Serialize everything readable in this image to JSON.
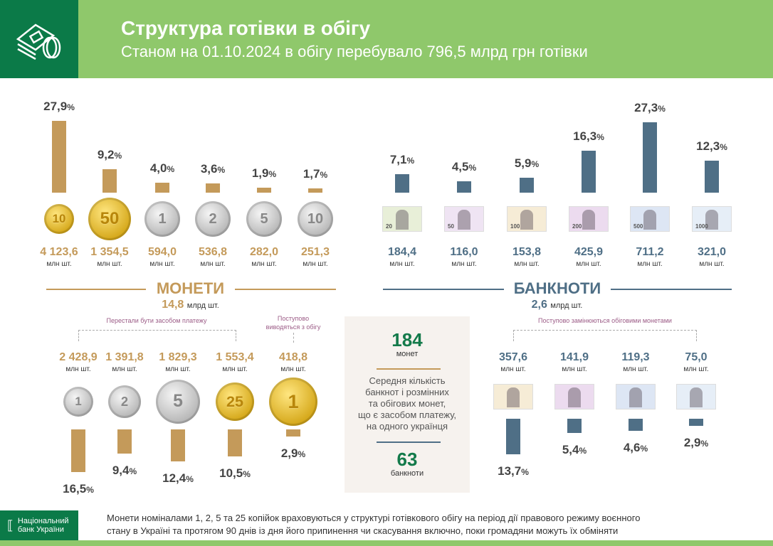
{
  "header": {
    "title": "Структура готівки в обігу",
    "subtitle": "Станом на 01.10.2024 в обігу перебувало 796,5 млрд грн готівки",
    "icon": "money-coins-icon"
  },
  "colors": {
    "coins": "#c49a5a",
    "banknotes": "#4f6f86",
    "header_green": "#8fc86b",
    "dark_green": "#0b7a48",
    "note_label": "#9b5b86"
  },
  "unit": "млн шт.",
  "pct_sign": "%",
  "chart_data": [
    {
      "type": "bar",
      "name": "coins-in-circulation",
      "categories": [
        "10 коп.",
        "50 коп.",
        "1 грн",
        "2 грн",
        "5 грн",
        "10 грн"
      ],
      "values": [
        27.9,
        9.2,
        4.0,
        3.6,
        1.9,
        1.7
      ],
      "value_labels": [
        "27,9",
        "9,2",
        "4,0",
        "3,6",
        "1,9",
        "1,7"
      ],
      "counts": [
        "4 123,6",
        "1 354,5",
        "594,0",
        "536,8",
        "282,0",
        "251,3"
      ]
    },
    {
      "type": "bar",
      "name": "banknotes-in-circulation",
      "categories": [
        "20 грн",
        "50 грн",
        "100 грн",
        "200 грн",
        "500 грн",
        "1000 грн"
      ],
      "values": [
        7.1,
        4.5,
        5.9,
        16.3,
        27.3,
        12.3
      ],
      "value_labels": [
        "7,1",
        "4,5",
        "5,9",
        "16,3",
        "27,3",
        "12,3"
      ],
      "counts": [
        "184,4",
        "116,0",
        "153,8",
        "425,9",
        "711,2",
        "321,0"
      ],
      "note_labels": [
        "20",
        "50",
        "100",
        "200",
        "500",
        "1000"
      ]
    },
    {
      "type": "bar",
      "name": "coins-withdrawn",
      "categories": [
        "1 коп.",
        "2 коп.",
        "5 коп.",
        "25 коп.",
        "1 грн (old)"
      ],
      "values": [
        16.5,
        9.4,
        12.4,
        10.5,
        2.9
      ],
      "value_labels": [
        "16,5",
        "9,4",
        "12,4",
        "10,5",
        "2,9"
      ],
      "counts": [
        "2 428,9",
        "1 391,8",
        "1 829,3",
        "1 553,4",
        "418,8"
      ],
      "coin_labels": [
        "1",
        "2",
        "5",
        "25",
        "1"
      ]
    },
    {
      "type": "bar",
      "name": "banknotes-replaced",
      "categories": [
        "1 грн",
        "2 грн",
        "5 грн",
        "10 грн"
      ],
      "values": [
        13.7,
        5.4,
        4.6,
        2.9
      ],
      "value_labels": [
        "13,7",
        "5,4",
        "4,6",
        "2,9"
      ],
      "counts": [
        "357,6",
        "141,9",
        "119,3",
        "75,0"
      ]
    }
  ],
  "coins": {
    "title": "МОНЕТИ",
    "total": "14,8",
    "total_unit": "млрд шт.",
    "note_stopped": "Перестали бути засобом платежу",
    "note_gradual_1": "Поступово",
    "note_gradual_2": "виводяться з обігу",
    "top_coin_labels": [
      "10",
      "50",
      "1",
      "2",
      "5",
      "10"
    ]
  },
  "banknotes": {
    "title": "БАНКНОТИ",
    "total": "2,6",
    "total_unit": "млрд шт.",
    "note_replaced": "Поступово замінюються обіговими монетами"
  },
  "info_box": {
    "coins_value": "184",
    "coins_label": "монет",
    "text": [
      "Середня кількість",
      "банкнот і розмінних",
      "та обігових монет,",
      "що є засобом платежу,",
      "на одного українця"
    ],
    "banknotes_value": "63",
    "banknotes_label": "банкноти"
  },
  "footer": {
    "logo_line1": "Національний",
    "logo_line2": "банк України",
    "text_line1": "Монети номіналами 1, 2, 5 та 25 копійок враховуються у структурі готівкового обігу на період дії правового режиму воєнного",
    "text_line2": "стану в Україні та протягом 90 днів із дня його припинення чи скасування включно, поки громадяни можуть їх обміняти"
  }
}
